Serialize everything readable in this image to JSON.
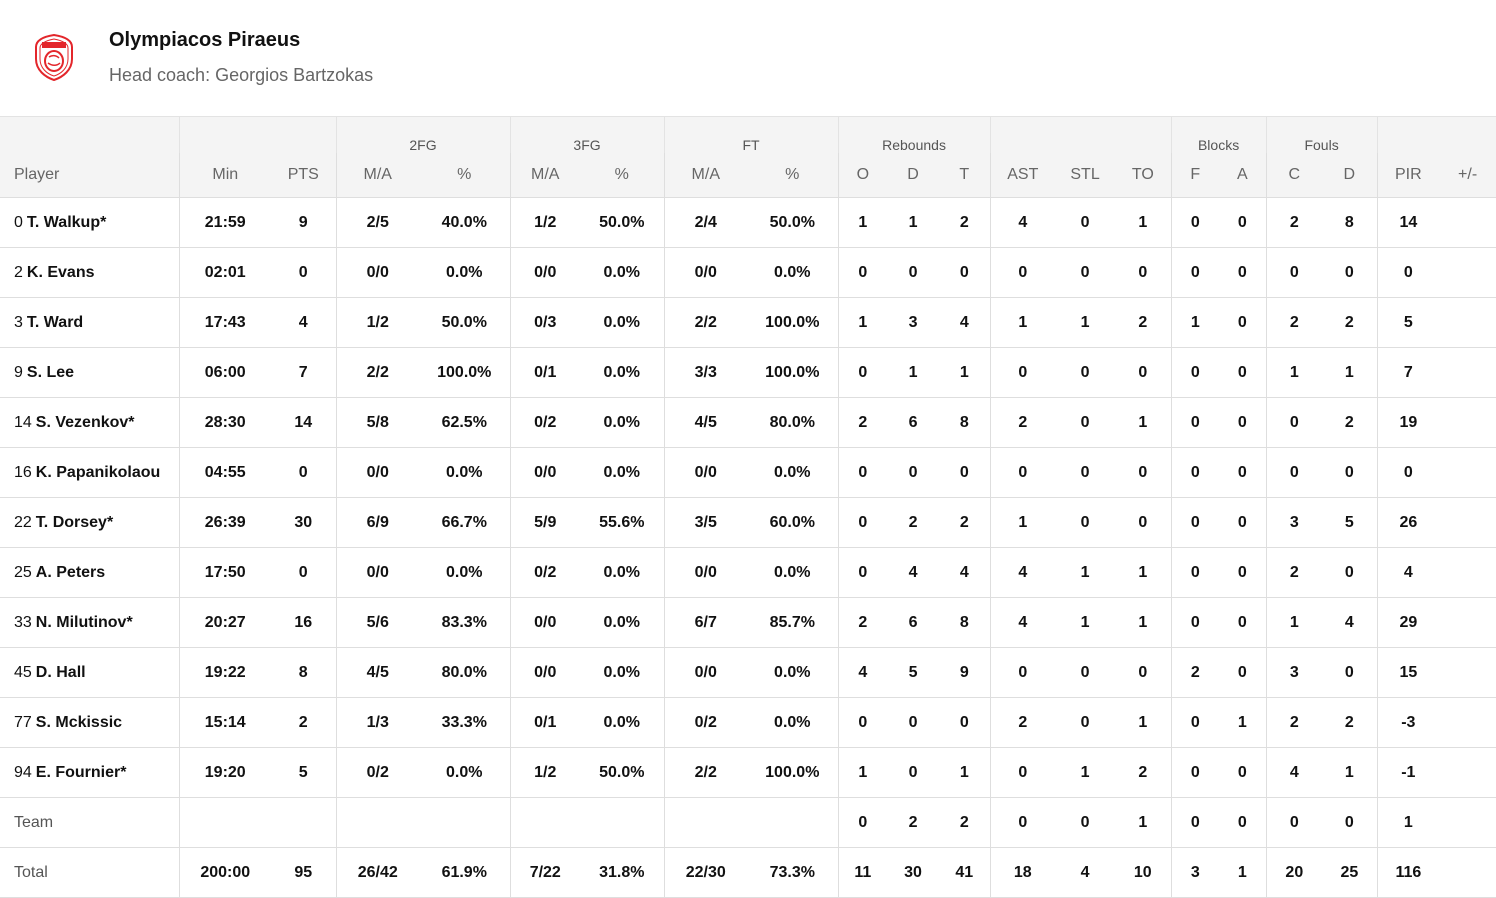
{
  "team": {
    "name": "Olympiacos Piraeus",
    "coach": "Head coach: Georgios Bartzokas",
    "logo_icon": "olympiacos-crest-icon",
    "logo_color": "#e3262b"
  },
  "header": {
    "groups": {
      "fg2": "2FG",
      "fg3": "3FG",
      "ft": "FT",
      "rebounds": "Rebounds",
      "blocks": "Blocks",
      "fouls": "Fouls"
    },
    "cols": {
      "player": "Player",
      "min": "Min",
      "pts": "PTS",
      "fg2_ma": "M/A",
      "fg2_pct": "%",
      "fg3_ma": "M/A",
      "fg3_pct": "%",
      "ft_ma": "M/A",
      "ft_pct": "%",
      "reb_o": "O",
      "reb_d": "D",
      "reb_t": "T",
      "ast": "AST",
      "stl": "STL",
      "to": "TO",
      "blk_f": "F",
      "blk_a": "A",
      "fouls_c": "C",
      "fouls_d": "D",
      "pir": "PIR",
      "pm": "+/-"
    }
  },
  "players": [
    {
      "num": "0",
      "name": "T. Walkup*",
      "min": "21:59",
      "pts": "9",
      "fg2": "2/5",
      "fg2p": "40.0%",
      "fg3": "1/2",
      "fg3p": "50.0%",
      "ft": "2/4",
      "ftp": "50.0%",
      "o": "1",
      "d": "1",
      "t": "2",
      "ast": "4",
      "stl": "0",
      "to": "1",
      "bf": "0",
      "ba": "0",
      "fc": "2",
      "fd": "8",
      "pir": "14",
      "pm": ""
    },
    {
      "num": "2",
      "name": "K. Evans",
      "min": "02:01",
      "pts": "0",
      "fg2": "0/0",
      "fg2p": "0.0%",
      "fg3": "0/0",
      "fg3p": "0.0%",
      "ft": "0/0",
      "ftp": "0.0%",
      "o": "0",
      "d": "0",
      "t": "0",
      "ast": "0",
      "stl": "0",
      "to": "0",
      "bf": "0",
      "ba": "0",
      "fc": "0",
      "fd": "0",
      "pir": "0",
      "pm": ""
    },
    {
      "num": "3",
      "name": "T. Ward",
      "min": "17:43",
      "pts": "4",
      "fg2": "1/2",
      "fg2p": "50.0%",
      "fg3": "0/3",
      "fg3p": "0.0%",
      "ft": "2/2",
      "ftp": "100.0%",
      "o": "1",
      "d": "3",
      "t": "4",
      "ast": "1",
      "stl": "1",
      "to": "2",
      "bf": "1",
      "ba": "0",
      "fc": "2",
      "fd": "2",
      "pir": "5",
      "pm": ""
    },
    {
      "num": "9",
      "name": "S. Lee",
      "min": "06:00",
      "pts": "7",
      "fg2": "2/2",
      "fg2p": "100.0%",
      "fg3": "0/1",
      "fg3p": "0.0%",
      "ft": "3/3",
      "ftp": "100.0%",
      "o": "0",
      "d": "1",
      "t": "1",
      "ast": "0",
      "stl": "0",
      "to": "0",
      "bf": "0",
      "ba": "0",
      "fc": "1",
      "fd": "1",
      "pir": "7",
      "pm": ""
    },
    {
      "num": "14",
      "name": "S. Vezenkov*",
      "min": "28:30",
      "pts": "14",
      "fg2": "5/8",
      "fg2p": "62.5%",
      "fg3": "0/2",
      "fg3p": "0.0%",
      "ft": "4/5",
      "ftp": "80.0%",
      "o": "2",
      "d": "6",
      "t": "8",
      "ast": "2",
      "stl": "0",
      "to": "1",
      "bf": "0",
      "ba": "0",
      "fc": "0",
      "fd": "2",
      "pir": "19",
      "pm": ""
    },
    {
      "num": "16",
      "name": "K. Papanikolaou",
      "min": "04:55",
      "pts": "0",
      "fg2": "0/0",
      "fg2p": "0.0%",
      "fg3": "0/0",
      "fg3p": "0.0%",
      "ft": "0/0",
      "ftp": "0.0%",
      "o": "0",
      "d": "0",
      "t": "0",
      "ast": "0",
      "stl": "0",
      "to": "0",
      "bf": "0",
      "ba": "0",
      "fc": "0",
      "fd": "0",
      "pir": "0",
      "pm": ""
    },
    {
      "num": "22",
      "name": "T. Dorsey*",
      "min": "26:39",
      "pts": "30",
      "fg2": "6/9",
      "fg2p": "66.7%",
      "fg3": "5/9",
      "fg3p": "55.6%",
      "ft": "3/5",
      "ftp": "60.0%",
      "o": "0",
      "d": "2",
      "t": "2",
      "ast": "1",
      "stl": "0",
      "to": "0",
      "bf": "0",
      "ba": "0",
      "fc": "3",
      "fd": "5",
      "pir": "26",
      "pm": ""
    },
    {
      "num": "25",
      "name": "A. Peters",
      "min": "17:50",
      "pts": "0",
      "fg2": "0/0",
      "fg2p": "0.0%",
      "fg3": "0/2",
      "fg3p": "0.0%",
      "ft": "0/0",
      "ftp": "0.0%",
      "o": "0",
      "d": "4",
      "t": "4",
      "ast": "4",
      "stl": "1",
      "to": "1",
      "bf": "0",
      "ba": "0",
      "fc": "2",
      "fd": "0",
      "pir": "4",
      "pm": ""
    },
    {
      "num": "33",
      "name": "N. Milutinov*",
      "min": "20:27",
      "pts": "16",
      "fg2": "5/6",
      "fg2p": "83.3%",
      "fg3": "0/0",
      "fg3p": "0.0%",
      "ft": "6/7",
      "ftp": "85.7%",
      "o": "2",
      "d": "6",
      "t": "8",
      "ast": "4",
      "stl": "1",
      "to": "1",
      "bf": "0",
      "ba": "0",
      "fc": "1",
      "fd": "4",
      "pir": "29",
      "pm": ""
    },
    {
      "num": "45",
      "name": "D. Hall",
      "min": "19:22",
      "pts": "8",
      "fg2": "4/5",
      "fg2p": "80.0%",
      "fg3": "0/0",
      "fg3p": "0.0%",
      "ft": "0/0",
      "ftp": "0.0%",
      "o": "4",
      "d": "5",
      "t": "9",
      "ast": "0",
      "stl": "0",
      "to": "0",
      "bf": "2",
      "ba": "0",
      "fc": "3",
      "fd": "0",
      "pir": "15",
      "pm": ""
    },
    {
      "num": "77",
      "name": "S. Mckissic",
      "min": "15:14",
      "pts": "2",
      "fg2": "1/3",
      "fg2p": "33.3%",
      "fg3": "0/1",
      "fg3p": "0.0%",
      "ft": "0/2",
      "ftp": "0.0%",
      "o": "0",
      "d": "0",
      "t": "0",
      "ast": "2",
      "stl": "0",
      "to": "1",
      "bf": "0",
      "ba": "1",
      "fc": "2",
      "fd": "2",
      "pir": "-3",
      "pm": ""
    },
    {
      "num": "94",
      "name": "E. Fournier*",
      "min": "19:20",
      "pts": "5",
      "fg2": "0/2",
      "fg2p": "0.0%",
      "fg3": "1/2",
      "fg3p": "50.0%",
      "ft": "2/2",
      "ftp": "100.0%",
      "o": "1",
      "d": "0",
      "t": "1",
      "ast": "0",
      "stl": "1",
      "to": "2",
      "bf": "0",
      "ba": "0",
      "fc": "4",
      "fd": "1",
      "pir": "-1",
      "pm": ""
    }
  ],
  "team_row": {
    "label": "Team",
    "min": "",
    "pts": "",
    "fg2": "",
    "fg2p": "",
    "fg3": "",
    "fg3p": "",
    "ft": "",
    "ftp": "",
    "o": "0",
    "d": "2",
    "t": "2",
    "ast": "0",
    "stl": "0",
    "to": "1",
    "bf": "0",
    "ba": "0",
    "fc": "0",
    "fd": "0",
    "pir": "1",
    "pm": ""
  },
  "total_row": {
    "label": "Total",
    "min": "200:00",
    "pts": "95",
    "fg2": "26/42",
    "fg2p": "61.9%",
    "fg3": "7/22",
    "fg3p": "31.8%",
    "ft": "22/30",
    "ftp": "73.3%",
    "o": "11",
    "d": "30",
    "t": "41",
    "ast": "18",
    "stl": "4",
    "to": "10",
    "bf": "3",
    "ba": "1",
    "fc": "20",
    "fd": "25",
    "pir": "116",
    "pm": ""
  }
}
